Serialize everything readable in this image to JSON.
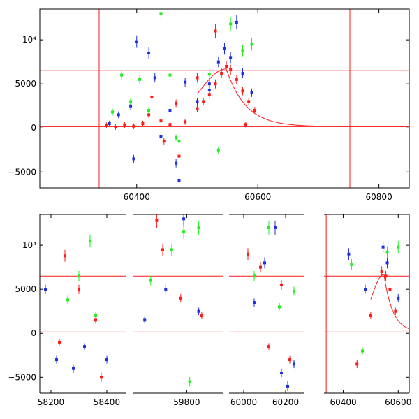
{
  "colors": {
    "red": "#ff1a1a",
    "blue": "#1f2fe0",
    "green": "#22ee22",
    "frame": "#000000",
    "background": "#ffffff"
  },
  "chart_data": [
    {
      "type": "scatter",
      "xlim": [
        60240,
        60850
      ],
      "ylim": [
        -6800,
        13500
      ],
      "x_ticks": [
        {
          "value": 60400,
          "label": "60400"
        },
        {
          "value": 60600,
          "label": "60600"
        },
        {
          "value": 60800,
          "label": "60800"
        }
      ],
      "y_ticks": [
        {
          "value": -5000,
          "label": "−5000"
        },
        {
          "value": 0,
          "label": "0"
        },
        {
          "value": 5000,
          "label": "5000"
        },
        {
          "value": 10000,
          "label": "10⁴"
        }
      ],
      "hlines": [
        150,
        6500
      ],
      "vlines": [
        60338,
        60752
      ],
      "series": [
        {
          "color": "red",
          "points": [
            [
              60350,
              300
            ],
            [
              60365,
              100
            ],
            [
              60380,
              350
            ],
            [
              60395,
              200
            ],
            [
              60410,
              500
            ],
            [
              60420,
              1500
            ],
            [
              60425,
              3500
            ],
            [
              60440,
              800
            ],
            [
              60455,
              400
            ],
            [
              60465,
              2800
            ],
            [
              60480,
              700
            ],
            [
              60500,
              2200
            ],
            [
              60510,
              3000
            ],
            [
              60520,
              3800
            ],
            [
              60530,
              5000
            ],
            [
              60540,
              6200
            ],
            [
              60548,
              7000
            ],
            [
              60555,
              6600
            ],
            [
              60565,
              5500
            ],
            [
              60575,
              4200
            ],
            [
              60585,
              3000
            ],
            [
              60595,
              2000
            ],
            [
              60530,
              11000
            ],
            [
              60445,
              -1500
            ],
            [
              60470,
              -3200
            ],
            [
              60580,
              400
            ],
            [
              60500,
              5700
            ]
          ]
        },
        {
          "color": "blue",
          "points": [
            [
              60355,
              500
            ],
            [
              60370,
              1500
            ],
            [
              60390,
              2500
            ],
            [
              60400,
              9800
            ],
            [
              60420,
              8500
            ],
            [
              60440,
              -1000
            ],
            [
              60455,
              2000
            ],
            [
              60465,
              -4000
            ],
            [
              60480,
              5200
            ],
            [
              60500,
              3000
            ],
            [
              60520,
              5000
            ],
            [
              60535,
              7500
            ],
            [
              60545,
              9000
            ],
            [
              60555,
              8000
            ],
            [
              60565,
              12000
            ],
            [
              60575,
              6200
            ],
            [
              60590,
              4000
            ],
            [
              60470,
              -6000
            ],
            [
              60395,
              -3500
            ],
            [
              60430,
              5700
            ],
            [
              60520,
              4300
            ]
          ]
        },
        {
          "color": "green",
          "points": [
            [
              60360,
              1800
            ],
            [
              60375,
              6000
            ],
            [
              60390,
              3000
            ],
            [
              60405,
              5500
            ],
            [
              60420,
              2000
            ],
            [
              60440,
              13000
            ],
            [
              60455,
              6000
            ],
            [
              60470,
              -1500
            ],
            [
              60520,
              6100
            ],
            [
              60535,
              -2500
            ],
            [
              60555,
              11800
            ],
            [
              60575,
              8800
            ],
            [
              60590,
              9500
            ],
            [
              60465,
              -1100
            ]
          ]
        }
      ],
      "model_curve": {
        "color": "red",
        "peak_x": 60548,
        "peak_y": 6700,
        "rise_width": 45,
        "decay_scale": 32,
        "baseline": 150
      }
    },
    {
      "type": "scatter",
      "ylim": [
        -6800,
        13500
      ],
      "segments": [
        {
          "xlim": [
            58160,
            58470
          ],
          "x_ticks": [
            {
              "value": 58200,
              "label": "58200"
            },
            {
              "value": 58400,
              "label": "58400"
            }
          ]
        },
        {
          "xlim": [
            59620,
            59920
          ],
          "x_ticks": [
            {
              "value": 59800,
              "label": "59800"
            }
          ]
        },
        {
          "xlim": [
            59930,
            60290
          ],
          "x_ticks": [
            {
              "value": 60000,
              "label": "60000"
            },
            {
              "value": 60200,
              "label": "60200"
            }
          ]
        },
        {
          "xlim": [
            60330,
            60640
          ],
          "x_ticks": [
            {
              "value": 60400,
              "label": "60400"
            },
            {
              "value": 60600,
              "label": "60600"
            }
          ]
        }
      ],
      "y_ticks": [
        {
          "value": -5000,
          "label": "−5000"
        },
        {
          "value": 0,
          "label": "0"
        },
        {
          "value": 5000,
          "label": "5000"
        },
        {
          "value": 10000,
          "label": "10⁴"
        }
      ],
      "hlines": [
        150,
        6500
      ],
      "vlines": [
        60338
      ],
      "series": [
        {
          "color": "red",
          "points": [
            [
              58250,
              8800
            ],
            [
              58300,
              5000
            ],
            [
              58360,
              1500
            ],
            [
              58380,
              -5000
            ],
            [
              58230,
              -1000
            ],
            [
              59700,
              12800
            ],
            [
              59720,
              9500
            ],
            [
              59780,
              4000
            ],
            [
              59850,
              2000
            ],
            [
              60020,
              9000
            ],
            [
              60080,
              7500
            ],
            [
              60120,
              -1500
            ],
            [
              60180,
              5500
            ],
            [
              60220,
              -3000
            ],
            [
              60500,
              2000
            ],
            [
              60540,
              7000
            ],
            [
              60555,
              6500
            ],
            [
              60570,
              5000
            ],
            [
              60590,
              2500
            ],
            [
              60450,
              -3500
            ]
          ]
        },
        {
          "color": "blue",
          "points": [
            [
              58180,
              5000
            ],
            [
              58220,
              -3000
            ],
            [
              58280,
              -4000
            ],
            [
              58320,
              -1500
            ],
            [
              58400,
              -3000
            ],
            [
              59660,
              1500
            ],
            [
              59730,
              5000
            ],
            [
              59790,
              13000
            ],
            [
              59840,
              2500
            ],
            [
              60050,
              3500
            ],
            [
              60100,
              8000
            ],
            [
              60150,
              12000
            ],
            [
              60180,
              -4500
            ],
            [
              60210,
              -6000
            ],
            [
              60240,
              -3500
            ],
            [
              60420,
              9000
            ],
            [
              60480,
              5000
            ],
            [
              60545,
              9800
            ],
            [
              60560,
              8000
            ],
            [
              60600,
              4000
            ]
          ]
        },
        {
          "color": "green",
          "points": [
            [
              58260,
              3800
            ],
            [
              58300,
              6500
            ],
            [
              58340,
              10500
            ],
            [
              58360,
              2000
            ],
            [
              59680,
              6000
            ],
            [
              59750,
              9500
            ],
            [
              59790,
              11500
            ],
            [
              59810,
              -5500
            ],
            [
              59840,
              12000
            ],
            [
              60050,
              6500
            ],
            [
              60120,
              12000
            ],
            [
              60170,
              3000
            ],
            [
              60240,
              4800
            ],
            [
              60430,
              7800
            ],
            [
              60470,
              -2000
            ],
            [
              60560,
              9200
            ],
            [
              60600,
              9800
            ]
          ]
        }
      ],
      "model_curve": {
        "color": "red",
        "peak_x": 60548,
        "peak_y": 6700,
        "rise_width": 45,
        "decay_scale": 32,
        "baseline": 150
      }
    }
  ]
}
